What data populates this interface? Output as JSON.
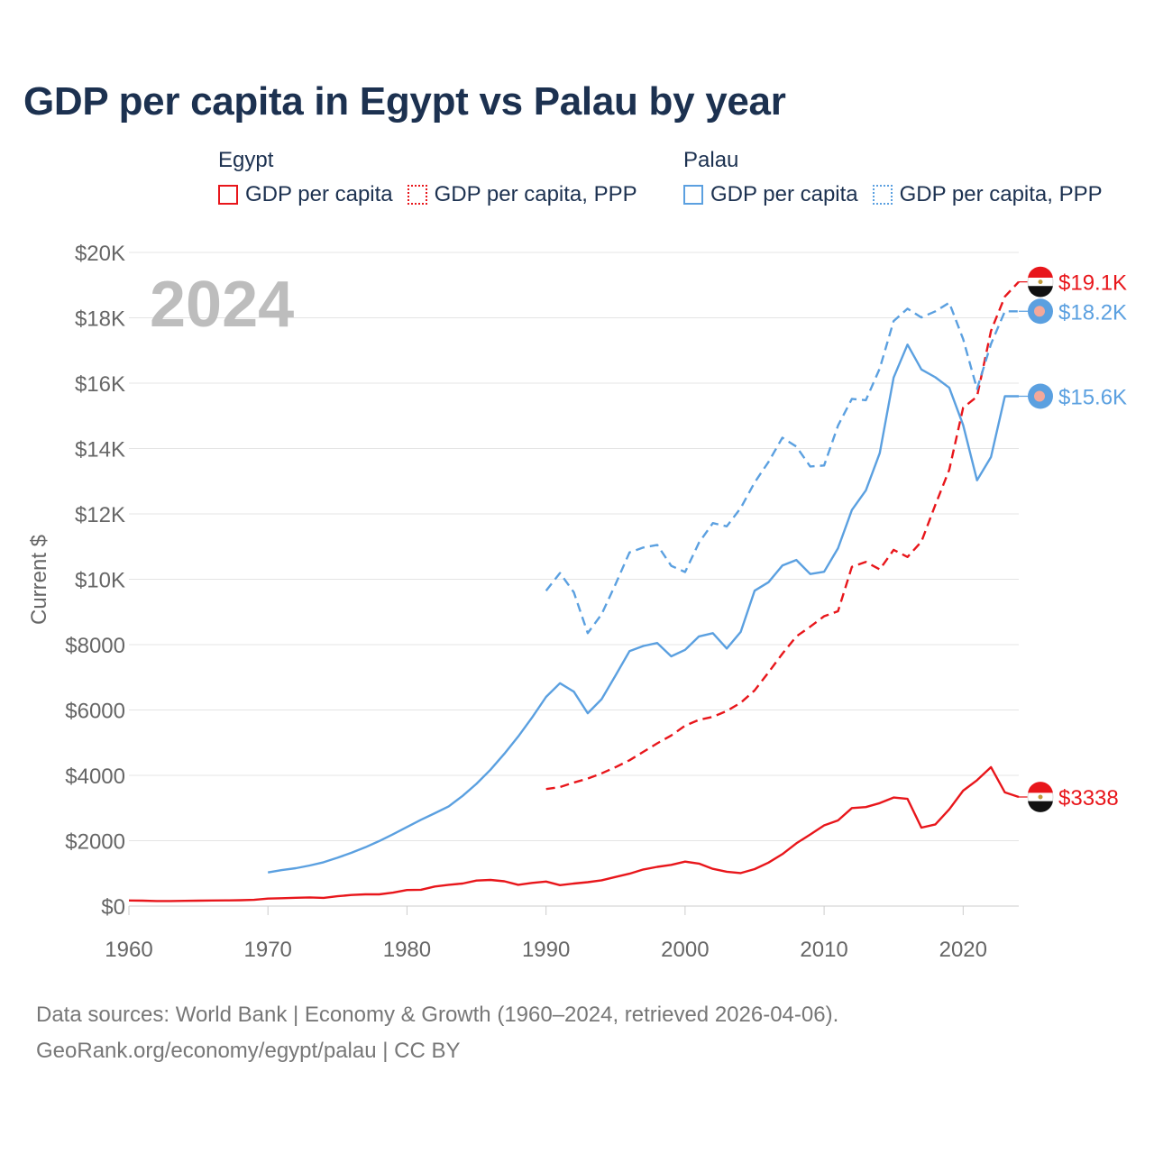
{
  "title": "GDP per capita in Egypt vs Palau by year",
  "legend": {
    "egypt": {
      "country": "Egypt",
      "items": [
        "GDP per capita",
        "GDP per capita, PPP"
      ]
    },
    "palau": {
      "country": "Palau",
      "items": [
        "GDP per capita",
        "GDP per capita, PPP"
      ]
    }
  },
  "colors": {
    "egypt": "#e8161b",
    "palau": "#5ba0e0",
    "axis_text": "#666666",
    "grid": "#e4e4e4",
    "year_watermark": "#bdbdbd"
  },
  "source": {
    "line1": "Data sources: World Bank | Economy & Growth (1960–2024, retrieved 2026-04-06).",
    "line2": "GeoRank.org/economy/egypt/palau | CC BY"
  },
  "chart_data": {
    "type": "line",
    "title": "GDP per capita in Egypt vs Palau by year",
    "xlabel": "",
    "ylabel": "Current $",
    "xlim": [
      1960,
      2024
    ],
    "ylim": [
      0,
      20000
    ],
    "x_ticks": [
      1960,
      1970,
      1980,
      1990,
      2000,
      2010,
      2020
    ],
    "x_tick_labels": [
      "1960",
      "1970",
      "1980",
      "1990",
      "2000",
      "2010",
      "2020"
    ],
    "y_ticks": [
      0,
      2000,
      4000,
      6000,
      8000,
      10000,
      12000,
      14000,
      16000,
      18000,
      20000
    ],
    "y_tick_labels": [
      "$0",
      "$2000",
      "$4000",
      "$6000",
      "$8000",
      "$10K",
      "$12K",
      "$14K",
      "$16K",
      "$18K",
      "$20K"
    ],
    "year_label": "2024",
    "grid": true,
    "series": [
      {
        "id": "egypt_gdp",
        "name": "Egypt GDP per capita",
        "country": "egypt",
        "style": "solid",
        "end_label": "$3338",
        "end_value": 3338,
        "points": [
          [
            1960,
            170
          ],
          [
            1961,
            165
          ],
          [
            1962,
            155
          ],
          [
            1963,
            155
          ],
          [
            1964,
            160
          ],
          [
            1965,
            165
          ],
          [
            1966,
            170
          ],
          [
            1967,
            175
          ],
          [
            1968,
            180
          ],
          [
            1969,
            190
          ],
          [
            1970,
            230
          ],
          [
            1971,
            240
          ],
          [
            1972,
            255
          ],
          [
            1973,
            265
          ],
          [
            1974,
            250
          ],
          [
            1975,
            300
          ],
          [
            1976,
            340
          ],
          [
            1977,
            360
          ],
          [
            1978,
            360
          ],
          [
            1979,
            410
          ],
          [
            1980,
            490
          ],
          [
            1981,
            500
          ],
          [
            1982,
            600
          ],
          [
            1983,
            650
          ],
          [
            1984,
            690
          ],
          [
            1985,
            780
          ],
          [
            1986,
            800
          ],
          [
            1987,
            760
          ],
          [
            1988,
            650
          ],
          [
            1989,
            710
          ],
          [
            1990,
            750
          ],
          [
            1991,
            640
          ],
          [
            1992,
            690
          ],
          [
            1993,
            730
          ],
          [
            1994,
            790
          ],
          [
            1995,
            890
          ],
          [
            1996,
            990
          ],
          [
            1997,
            1120
          ],
          [
            1998,
            1200
          ],
          [
            1999,
            1260
          ],
          [
            2000,
            1360
          ],
          [
            2001,
            1300
          ],
          [
            2002,
            1140
          ],
          [
            2003,
            1050
          ],
          [
            2004,
            1010
          ],
          [
            2005,
            1130
          ],
          [
            2006,
            1330
          ],
          [
            2007,
            1590
          ],
          [
            2008,
            1920
          ],
          [
            2009,
            2190
          ],
          [
            2010,
            2470
          ],
          [
            2011,
            2620
          ],
          [
            2012,
            3000
          ],
          [
            2013,
            3030
          ],
          [
            2014,
            3150
          ],
          [
            2015,
            3320
          ],
          [
            2016,
            3280
          ],
          [
            2017,
            2400
          ],
          [
            2018,
            2500
          ],
          [
            2019,
            2960
          ],
          [
            2020,
            3530
          ],
          [
            2021,
            3850
          ],
          [
            2022,
            4250
          ],
          [
            2023,
            3480
          ],
          [
            2024,
            3338
          ]
        ]
      },
      {
        "id": "egypt_ppp",
        "name": "Egypt GDP per capita, PPP",
        "country": "egypt",
        "style": "dashed",
        "end_label": "$19.1K",
        "end_value": 19100,
        "points": [
          [
            1990,
            3580
          ],
          [
            1991,
            3640
          ],
          [
            1992,
            3780
          ],
          [
            1993,
            3900
          ],
          [
            1994,
            4060
          ],
          [
            1995,
            4250
          ],
          [
            1996,
            4460
          ],
          [
            1997,
            4720
          ],
          [
            1998,
            4980
          ],
          [
            1999,
            5220
          ],
          [
            2000,
            5520
          ],
          [
            2001,
            5700
          ],
          [
            2002,
            5790
          ],
          [
            2003,
            5970
          ],
          [
            2004,
            6220
          ],
          [
            2005,
            6600
          ],
          [
            2006,
            7150
          ],
          [
            2007,
            7720
          ],
          [
            2008,
            8250
          ],
          [
            2009,
            8550
          ],
          [
            2010,
            8870
          ],
          [
            2011,
            9020
          ],
          [
            2012,
            10380
          ],
          [
            2013,
            10530
          ],
          [
            2014,
            10300
          ],
          [
            2015,
            10900
          ],
          [
            2016,
            10680
          ],
          [
            2017,
            11150
          ],
          [
            2018,
            12280
          ],
          [
            2019,
            13350
          ],
          [
            2020,
            15250
          ],
          [
            2021,
            15590
          ],
          [
            2022,
            17600
          ],
          [
            2023,
            18650
          ],
          [
            2024,
            19100
          ]
        ]
      },
      {
        "id": "palau_gdp",
        "name": "Palau GDP per capita",
        "country": "palau",
        "style": "solid",
        "end_label": "$15.6K",
        "end_value": 15600,
        "points": [
          [
            1970,
            1030
          ],
          [
            1971,
            1100
          ],
          [
            1972,
            1160
          ],
          [
            1973,
            1240
          ],
          [
            1974,
            1340
          ],
          [
            1975,
            1480
          ],
          [
            1976,
            1630
          ],
          [
            1977,
            1800
          ],
          [
            1978,
            1990
          ],
          [
            1979,
            2200
          ],
          [
            1980,
            2420
          ],
          [
            1981,
            2640
          ],
          [
            1982,
            2840
          ],
          [
            1983,
            3050
          ],
          [
            1984,
            3370
          ],
          [
            1985,
            3740
          ],
          [
            1986,
            4170
          ],
          [
            1987,
            4660
          ],
          [
            1988,
            5190
          ],
          [
            1989,
            5770
          ],
          [
            1990,
            6400
          ],
          [
            1991,
            6820
          ],
          [
            1992,
            6560
          ],
          [
            1993,
            5900
          ],
          [
            1994,
            6330
          ],
          [
            1995,
            7060
          ],
          [
            1996,
            7800
          ],
          [
            1997,
            7960
          ],
          [
            1998,
            8050
          ],
          [
            1999,
            7640
          ],
          [
            2000,
            7840
          ],
          [
            2001,
            8250
          ],
          [
            2002,
            8350
          ],
          [
            2003,
            7880
          ],
          [
            2004,
            8390
          ],
          [
            2005,
            9650
          ],
          [
            2006,
            9910
          ],
          [
            2007,
            10420
          ],
          [
            2008,
            10590
          ],
          [
            2009,
            10160
          ],
          [
            2010,
            10230
          ],
          [
            2011,
            10950
          ],
          [
            2012,
            12120
          ],
          [
            2013,
            12720
          ],
          [
            2014,
            13860
          ],
          [
            2015,
            16170
          ],
          [
            2016,
            17180
          ],
          [
            2017,
            16420
          ],
          [
            2018,
            16180
          ],
          [
            2019,
            15860
          ],
          [
            2020,
            14720
          ],
          [
            2021,
            13030
          ],
          [
            2022,
            13740
          ],
          [
            2023,
            15600
          ],
          [
            2024,
            15600
          ]
        ]
      },
      {
        "id": "palau_ppp",
        "name": "Palau GDP per capita, PPP",
        "country": "palau",
        "style": "dashed",
        "end_label": "$18.2K",
        "end_value": 18200,
        "points": [
          [
            1990,
            9650
          ],
          [
            1991,
            10190
          ],
          [
            1992,
            9600
          ],
          [
            1993,
            8350
          ],
          [
            1994,
            8930
          ],
          [
            1995,
            9850
          ],
          [
            1996,
            10820
          ],
          [
            1997,
            10970
          ],
          [
            1998,
            11050
          ],
          [
            1999,
            10410
          ],
          [
            2000,
            10220
          ],
          [
            2001,
            11120
          ],
          [
            2002,
            11720
          ],
          [
            2003,
            11620
          ],
          [
            2004,
            12180
          ],
          [
            2005,
            12960
          ],
          [
            2006,
            13590
          ],
          [
            2007,
            14330
          ],
          [
            2008,
            14060
          ],
          [
            2009,
            13450
          ],
          [
            2010,
            13480
          ],
          [
            2011,
            14700
          ],
          [
            2012,
            15520
          ],
          [
            2013,
            15480
          ],
          [
            2014,
            16450
          ],
          [
            2015,
            17900
          ],
          [
            2016,
            18280
          ],
          [
            2017,
            18010
          ],
          [
            2018,
            18200
          ],
          [
            2019,
            18460
          ],
          [
            2020,
            17350
          ],
          [
            2021,
            15820
          ],
          [
            2022,
            17200
          ],
          [
            2023,
            18200
          ],
          [
            2024,
            18200
          ]
        ]
      }
    ]
  }
}
